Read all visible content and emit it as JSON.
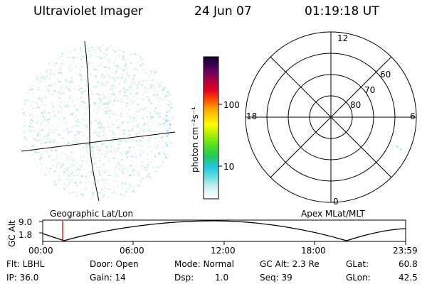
{
  "header": {
    "title": "Ultraviolet Imager",
    "date": "24 Jun 07",
    "time": "01:19:18 UT"
  },
  "colorbar": {
    "unit_label": "photon cm⁻²s⁻¹",
    "ticks": [
      "100",
      "10"
    ],
    "tick_values": [
      100,
      10
    ],
    "range": [
      2,
      600
    ]
  },
  "polar": {
    "clock_labels": {
      "top": "12",
      "left": "18",
      "right": "6",
      "bottom": "0"
    },
    "lat_labels": [
      "80",
      "70",
      "60"
    ]
  },
  "timeline": {
    "left_label": "Geographic Lat/Lon",
    "right_label": "Apex MLat/MLT",
    "y_axis_label": "GC Alt",
    "y_ticks": [
      "9.0",
      "1.8"
    ],
    "x_ticks": [
      "00:00",
      "06:00",
      "12:00",
      "18:00",
      "23:59"
    ],
    "current_time_hours": 1.32
  },
  "info": {
    "row1": {
      "filter": "Flt: LBHL",
      "door": "Door: Open",
      "mode": "Mode: Normal",
      "gc_alt": "GC Alt: 2.3 Re",
      "glat_label": "GLat:",
      "glat_value": "60.8"
    },
    "row2": {
      "ip": "IP: 36.0",
      "gain": "Gain: 14",
      "dsp_label": "Dsp:",
      "dsp_value": "1.0",
      "seq": "Seq: 39",
      "glon_label": "GLon:",
      "glon_value": "42.5"
    }
  },
  "colors": {
    "speckle": "#bfe3df",
    "speckle_strong": "#66d6ee",
    "marker": "#e00000"
  }
}
